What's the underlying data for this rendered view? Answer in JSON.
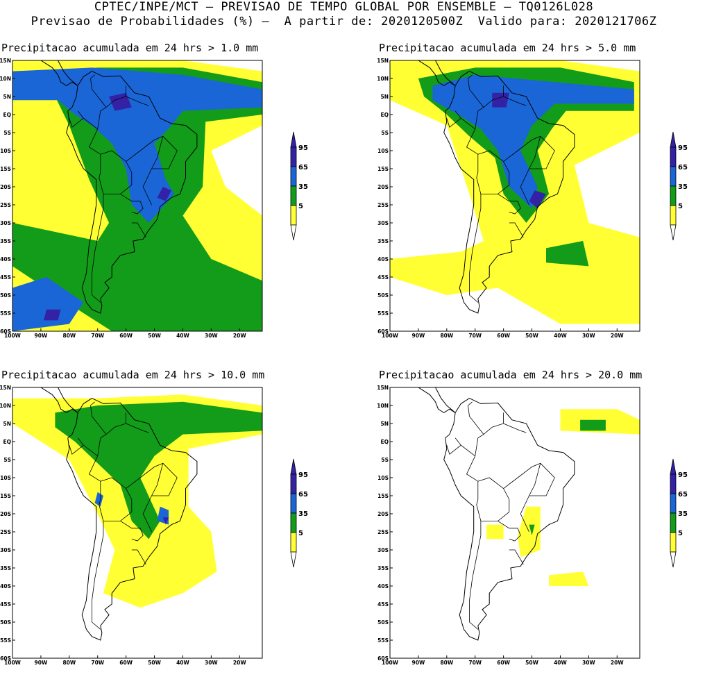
{
  "header": {
    "line1": "CPTEC/INPE/MCT – PREVISAO DE TEMPO GLOBAL POR ENSEMBLE – TQ0126L028",
    "line2": "Previsao de Probabilidades (%) –  A partir de: 2020120500Z  Valido para: 2020121706Z"
  },
  "colors": {
    "p5": "#ffff33",
    "p35": "#129c1a",
    "p65": "#1a66d6",
    "p95": "#3322a6",
    "land_outline": "#000000"
  },
  "axes": {
    "lat_labels": [
      "15N",
      "10N",
      "5N",
      "EQ",
      "5S",
      "10S",
      "15S",
      "20S",
      "25S",
      "30S",
      "35S",
      "40S",
      "45S",
      "50S",
      "55S",
      "60S"
    ],
    "lon_labels": [
      "100W",
      "90W",
      "80W",
      "70W",
      "60W",
      "50W",
      "40W",
      "30W",
      "20W"
    ]
  },
  "colorbar": {
    "labels": [
      "95",
      "65",
      "35",
      "5"
    ]
  },
  "panels": [
    {
      "title": "Precipitacao acumulada em 24 hrs > 1.0 mm"
    },
    {
      "title": "Precipitacao acumulada em 24 hrs > 5.0 mm"
    },
    {
      "title": "Precipitacao acumulada em 24 hrs > 10.0 mm"
    },
    {
      "title": "Precipitacao acumulada em 24 hrs > 20.0 mm"
    }
  ]
}
